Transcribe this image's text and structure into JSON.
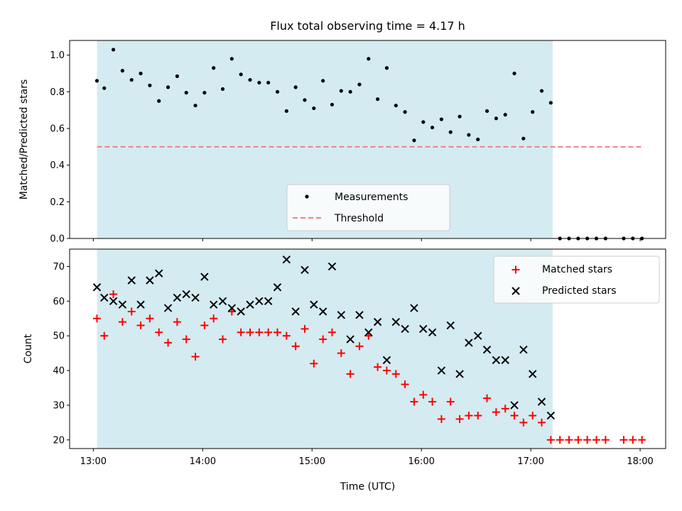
{
  "colors": {
    "observing_window": "#d4ebf1",
    "measurement": "#000000",
    "threshold": "#f08080",
    "matched": "#ff0000",
    "predicted": "#000000"
  },
  "chart_data": [
    {
      "type": "scatter",
      "title": "Flux total observing time = 4.17 h",
      "xlabel": "",
      "ylabel": "Matched/Predicted stars",
      "xlim": [
        "12:47",
        "18:14"
      ],
      "ylim": [
        0.0,
        1.08
      ],
      "yticks": [
        0.0,
        0.2,
        0.4,
        0.6,
        0.8,
        1.0
      ],
      "ytick_labels": [
        "0.0",
        "0.2",
        "0.4",
        "0.6",
        "0.8",
        "1.0"
      ],
      "shaded_interval": [
        "13:02",
        "17:12"
      ],
      "legend": {
        "position": "lower-center",
        "entries": [
          "Measurements",
          "Threshold"
        ]
      },
      "threshold": {
        "value": 0.5,
        "x_range": [
          "13:02",
          "18:02"
        ]
      },
      "series": [
        {
          "name": "Measurements",
          "marker": "dot",
          "points": [
            [
              "13:02",
              0.86
            ],
            [
              "13:06",
              0.82
            ],
            [
              "13:11",
              1.03
            ],
            [
              "13:16",
              0.915
            ],
            [
              "13:21",
              0.865
            ],
            [
              "13:26",
              0.9
            ],
            [
              "13:31",
              0.835
            ],
            [
              "13:36",
              0.75
            ],
            [
              "13:41",
              0.825
            ],
            [
              "13:46",
              0.885
            ],
            [
              "13:51",
              0.795
            ],
            [
              "13:56",
              0.725
            ],
            [
              "14:01",
              0.795
            ],
            [
              "14:06",
              0.93
            ],
            [
              "14:11",
              0.815
            ],
            [
              "14:16",
              0.98
            ],
            [
              "14:21",
              0.895
            ],
            [
              "14:26",
              0.865
            ],
            [
              "14:31",
              0.85
            ],
            [
              "14:36",
              0.85
            ],
            [
              "14:41",
              0.8
            ],
            [
              "14:46",
              0.695
            ],
            [
              "14:51",
              0.825
            ],
            [
              "14:56",
              0.755
            ],
            [
              "15:01",
              0.71
            ],
            [
              "15:06",
              0.86
            ],
            [
              "15:11",
              0.73
            ],
            [
              "15:16",
              0.805
            ],
            [
              "15:21",
              0.8
            ],
            [
              "15:26",
              0.84
            ],
            [
              "15:31",
              0.98
            ],
            [
              "15:36",
              0.76
            ],
            [
              "15:41",
              0.93
            ],
            [
              "15:46",
              0.725
            ],
            [
              "15:51",
              0.69
            ],
            [
              "15:56",
              0.535
            ],
            [
              "16:01",
              0.635
            ],
            [
              "16:06",
              0.605
            ],
            [
              "16:11",
              0.65
            ],
            [
              "16:16",
              0.58
            ],
            [
              "16:21",
              0.665
            ],
            [
              "16:26",
              0.565
            ],
            [
              "16:31",
              0.54
            ],
            [
              "16:36",
              0.695
            ],
            [
              "16:41",
              0.655
            ],
            [
              "16:46",
              0.675
            ],
            [
              "16:51",
              0.9
            ],
            [
              "16:56",
              0.545
            ],
            [
              "17:01",
              0.69
            ],
            [
              "17:06",
              0.805
            ],
            [
              "17:11",
              0.74
            ],
            [
              "17:16",
              0.0
            ],
            [
              "17:21",
              0.0
            ],
            [
              "17:26",
              0.0
            ],
            [
              "17:31",
              0.0
            ],
            [
              "17:36",
              0.0
            ],
            [
              "17:41",
              0.0
            ],
            [
              "17:51",
              0.0
            ],
            [
              "17:56",
              0.0
            ],
            [
              "18:01",
              0.0
            ]
          ]
        }
      ]
    },
    {
      "type": "scatter",
      "title": "",
      "xlabel": "Time (UTC)",
      "ylabel": "Count",
      "xlim": [
        "12:47",
        "18:14"
      ],
      "ylim": [
        17.5,
        75.0
      ],
      "xticks": [
        "13:00",
        "14:00",
        "15:00",
        "16:00",
        "17:00",
        "18:00"
      ],
      "xtick_labels": [
        "13:00",
        "14:00",
        "15:00",
        "16:00",
        "17:00",
        "18:00"
      ],
      "yticks": [
        20,
        30,
        40,
        50,
        60,
        70
      ],
      "ytick_labels": [
        "20",
        "30",
        "40",
        "50",
        "60",
        "70"
      ],
      "shaded_interval": [
        "13:02",
        "17:12"
      ],
      "legend": {
        "position": "upper-right",
        "entries": [
          "Matched stars",
          "Predicted stars"
        ]
      },
      "series": [
        {
          "name": "Matched stars",
          "marker": "plus",
          "points": [
            [
              "13:02",
              55
            ],
            [
              "13:06",
              50
            ],
            [
              "13:11",
              62
            ],
            [
              "13:16",
              54
            ],
            [
              "13:21",
              57
            ],
            [
              "13:26",
              53
            ],
            [
              "13:31",
              55
            ],
            [
              "13:36",
              51
            ],
            [
              "13:41",
              48
            ],
            [
              "13:46",
              54
            ],
            [
              "13:51",
              49
            ],
            [
              "13:56",
              44
            ],
            [
              "14:01",
              53
            ],
            [
              "14:06",
              55
            ],
            [
              "14:11",
              49
            ],
            [
              "14:16",
              57
            ],
            [
              "14:21",
              51
            ],
            [
              "14:26",
              51
            ],
            [
              "14:31",
              51
            ],
            [
              "14:36",
              51
            ],
            [
              "14:41",
              51
            ],
            [
              "14:46",
              50
            ],
            [
              "14:51",
              47
            ],
            [
              "14:56",
              52
            ],
            [
              "15:01",
              42
            ],
            [
              "15:06",
              49
            ],
            [
              "15:11",
              51
            ],
            [
              "15:16",
              45
            ],
            [
              "15:21",
              39
            ],
            [
              "15:26",
              47
            ],
            [
              "15:31",
              50
            ],
            [
              "15:36",
              41
            ],
            [
              "15:41",
              40
            ],
            [
              "15:46",
              39
            ],
            [
              "15:51",
              36
            ],
            [
              "15:56",
              31
            ],
            [
              "16:01",
              33
            ],
            [
              "16:06",
              31
            ],
            [
              "16:11",
              26
            ],
            [
              "16:16",
              31
            ],
            [
              "16:21",
              26
            ],
            [
              "16:26",
              27
            ],
            [
              "16:31",
              27
            ],
            [
              "16:36",
              32
            ],
            [
              "16:41",
              28
            ],
            [
              "16:46",
              29
            ],
            [
              "16:51",
              27
            ],
            [
              "16:56",
              25
            ],
            [
              "17:01",
              27
            ],
            [
              "17:06",
              25
            ],
            [
              "17:11",
              20
            ],
            [
              "17:16",
              20
            ],
            [
              "17:21",
              20
            ],
            [
              "17:26",
              20
            ],
            [
              "17:31",
              20
            ],
            [
              "17:36",
              20
            ],
            [
              "17:41",
              20
            ],
            [
              "17:51",
              20
            ],
            [
              "17:56",
              20
            ],
            [
              "18:01",
              20
            ]
          ]
        },
        {
          "name": "Predicted stars",
          "marker": "x",
          "points": [
            [
              "13:02",
              64
            ],
            [
              "13:06",
              61
            ],
            [
              "13:11",
              60
            ],
            [
              "13:16",
              59
            ],
            [
              "13:21",
              66
            ],
            [
              "13:26",
              59
            ],
            [
              "13:31",
              66
            ],
            [
              "13:36",
              68
            ],
            [
              "13:41",
              58
            ],
            [
              "13:46",
              61
            ],
            [
              "13:51",
              62
            ],
            [
              "13:56",
              61
            ],
            [
              "14:01",
              67
            ],
            [
              "14:06",
              59
            ],
            [
              "14:11",
              60
            ],
            [
              "14:16",
              58
            ],
            [
              "14:21",
              57
            ],
            [
              "14:26",
              59
            ],
            [
              "14:31",
              60
            ],
            [
              "14:36",
              60
            ],
            [
              "14:41",
              64
            ],
            [
              "14:46",
              72
            ],
            [
              "14:51",
              57
            ],
            [
              "14:56",
              69
            ],
            [
              "15:01",
              59
            ],
            [
              "15:06",
              57
            ],
            [
              "15:11",
              70
            ],
            [
              "15:16",
              56
            ],
            [
              "15:21",
              49
            ],
            [
              "15:26",
              56
            ],
            [
              "15:31",
              51
            ],
            [
              "15:36",
              54
            ],
            [
              "15:41",
              43
            ],
            [
              "15:46",
              54
            ],
            [
              "15:51",
              52
            ],
            [
              "15:56",
              58
            ],
            [
              "16:01",
              52
            ],
            [
              "16:06",
              51
            ],
            [
              "16:11",
              40
            ],
            [
              "16:16",
              53
            ],
            [
              "16:21",
              39
            ],
            [
              "16:26",
              48
            ],
            [
              "16:31",
              50
            ],
            [
              "16:36",
              46
            ],
            [
              "16:41",
              43
            ],
            [
              "16:46",
              43
            ],
            [
              "16:51",
              30
            ],
            [
              "16:56",
              46
            ],
            [
              "17:01",
              39
            ],
            [
              "17:06",
              31
            ],
            [
              "17:11",
              27
            ]
          ]
        }
      ]
    }
  ]
}
